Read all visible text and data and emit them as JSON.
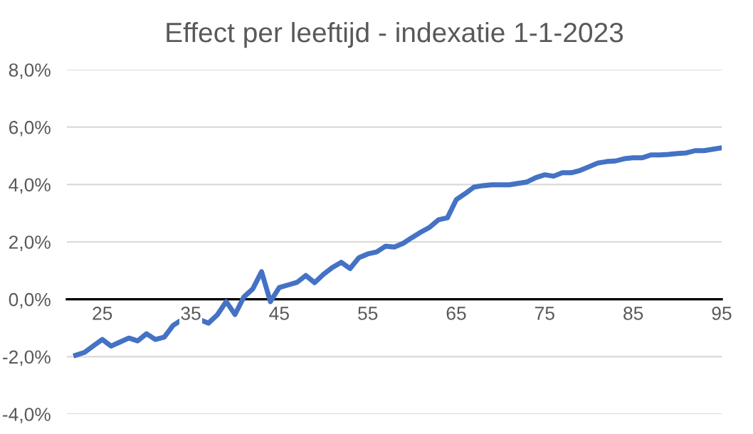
{
  "chart_data": {
    "type": "line",
    "title": "Effect per leeftijd - indexatie 1-1-2023",
    "x": [
      22,
      23,
      24,
      25,
      26,
      27,
      28,
      29,
      30,
      31,
      32,
      33,
      34,
      35,
      36,
      37,
      38,
      39,
      40,
      41,
      42,
      43,
      44,
      45,
      46,
      47,
      48,
      49,
      50,
      51,
      52,
      53,
      54,
      55,
      56,
      57,
      58,
      59,
      60,
      61,
      62,
      63,
      64,
      65,
      66,
      67,
      68,
      69,
      70,
      71,
      72,
      73,
      74,
      75,
      76,
      77,
      78,
      79,
      80,
      81,
      82,
      83,
      84,
      85,
      86,
      87,
      88,
      89,
      90,
      91,
      92,
      93,
      94,
      95
    ],
    "series": [
      {
        "color": "#4472c4",
        "values": [
          -1.95,
          -1.85,
          -1.62,
          -1.4,
          -1.63,
          -1.49,
          -1.35,
          -1.45,
          -1.2,
          -1.4,
          -1.32,
          -0.91,
          -0.71,
          -0.54,
          -0.71,
          -0.83,
          -0.54,
          -0.08,
          -0.53,
          0.08,
          0.36,
          0.96,
          -0.08,
          0.41,
          0.5,
          0.59,
          0.83,
          0.58,
          0.87,
          1.11,
          1.29,
          1.07,
          1.45,
          1.58,
          1.65,
          1.85,
          1.82,
          1.95,
          2.15,
          2.34,
          2.51,
          2.77,
          2.84,
          3.47,
          3.68,
          3.91,
          3.96,
          3.99,
          3.99,
          3.99,
          4.04,
          4.09,
          4.24,
          4.34,
          4.29,
          4.41,
          4.41,
          4.49,
          4.62,
          4.75,
          4.8,
          4.82,
          4.9,
          4.93,
          4.93,
          5.03,
          5.03,
          5.05,
          5.08,
          5.1,
          5.18,
          5.18,
          5.23,
          5.28
        ]
      }
    ],
    "xlim": [
      21,
      95
    ],
    "xticks": [
      25,
      35,
      45,
      55,
      65,
      75,
      85,
      95
    ],
    "ylim": [
      -4,
      8
    ],
    "yticks": [
      {
        "value": -4,
        "label": "-4,0%"
      },
      {
        "value": -2,
        "label": "-2,0%"
      },
      {
        "value": 0,
        "label": "0,0%"
      },
      {
        "value": 2,
        "label": "2,0%"
      },
      {
        "value": 4,
        "label": "4,0%"
      },
      {
        "value": 6,
        "label": "6,0%"
      },
      {
        "value": 8,
        "label": "8,0%"
      }
    ],
    "grid": "y",
    "marker": "none",
    "line_style": "solid"
  }
}
